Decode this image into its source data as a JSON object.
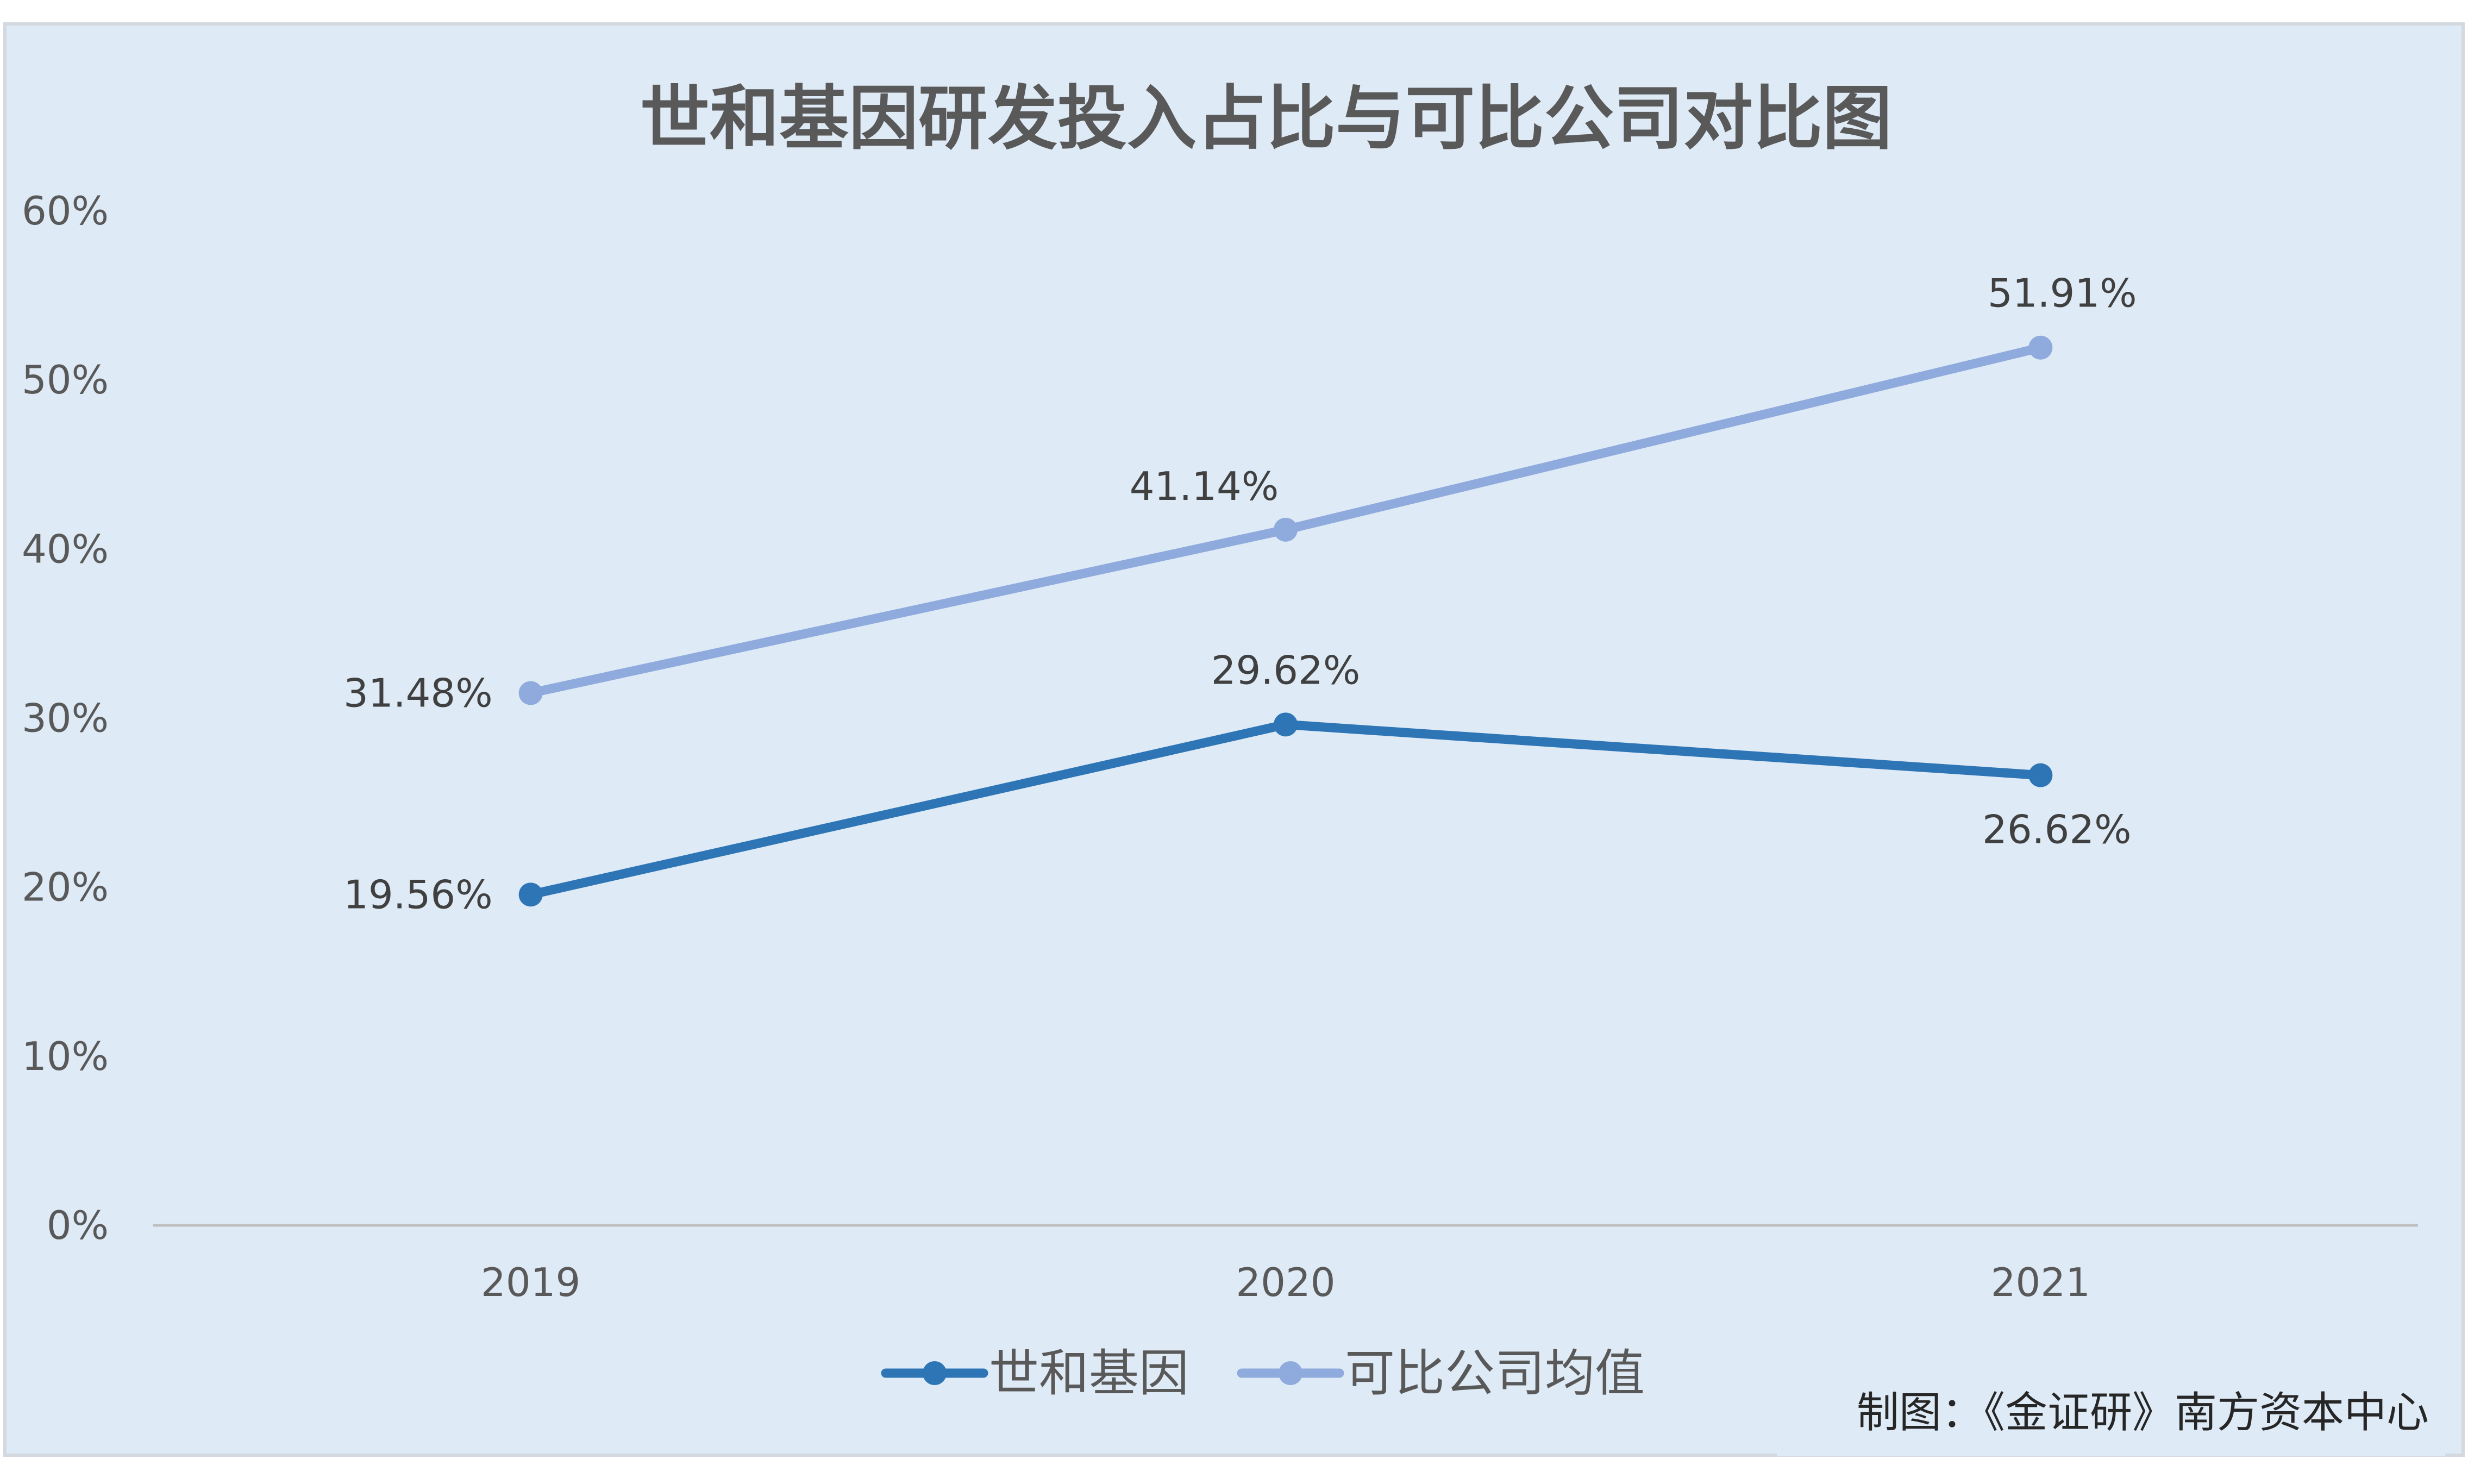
{
  "chart_data": {
    "type": "line",
    "title": "世和基因研发投入占比与可比公司对比图",
    "categories": [
      "2019",
      "2020",
      "2021"
    ],
    "y_ticks": [
      "0%",
      "10%",
      "20%",
      "30%",
      "40%",
      "50%",
      "60%"
    ],
    "ylim": [
      0,
      60
    ],
    "grid": false,
    "legend_position": "bottom",
    "series": [
      {
        "name": "世和基因",
        "values": [
          19.56,
          29.62,
          26.62
        ],
        "labels": [
          "19.56%",
          "29.62%",
          "26.62%"
        ],
        "color": "#2e75b6"
      },
      {
        "name": "可比公司均值",
        "values": [
          31.48,
          41.14,
          51.91
        ],
        "labels": [
          "31.48%",
          "41.14%",
          "51.91%"
        ],
        "color": "#8faadc"
      }
    ]
  },
  "footer": {
    "credit": "制图：《金证研》南方资本中心"
  },
  "colors": {
    "background": "#deeaf6",
    "axis": "#bfbfbf",
    "text": "#595959"
  }
}
